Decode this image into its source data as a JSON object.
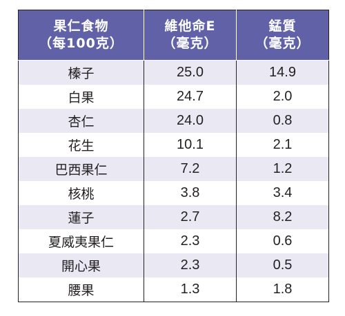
{
  "table": {
    "headers": [
      {
        "line1": "果仁食物",
        "line2": "（每100克）"
      },
      {
        "line1": "維他命E",
        "line2": "（毫克）"
      },
      {
        "line1": "錳質",
        "line2": "（毫克）"
      }
    ],
    "rows": [
      {
        "food": "榛子",
        "vitamin_e": "25.0",
        "manganese": "14.9"
      },
      {
        "food": "白果",
        "vitamin_e": "24.7",
        "manganese": "2.0"
      },
      {
        "food": "杏仁",
        "vitamin_e": "24.0",
        "manganese": "0.8"
      },
      {
        "food": "花生",
        "vitamin_e": "10.1",
        "manganese": "2.1"
      },
      {
        "food": "巴西果仁",
        "vitamin_e": "7.2",
        "manganese": "1.2"
      },
      {
        "food": "核桃",
        "vitamin_e": "3.8",
        "manganese": "3.4"
      },
      {
        "food": "蓮子",
        "vitamin_e": "2.7",
        "manganese": "8.2"
      },
      {
        "food": "夏威夷果仁",
        "vitamin_e": "2.3",
        "manganese": "0.6"
      },
      {
        "food": "開心果",
        "vitamin_e": "2.3",
        "manganese": "0.5"
      },
      {
        "food": "腰果",
        "vitamin_e": "1.3",
        "manganese": "1.8"
      }
    ]
  },
  "colors": {
    "header_bg": "#6161a8",
    "header_text": "#ffffff",
    "row_stripe": "#e9e8f3",
    "row_plain": "#ffffff",
    "text": "#231f20",
    "border": "#231f20"
  }
}
